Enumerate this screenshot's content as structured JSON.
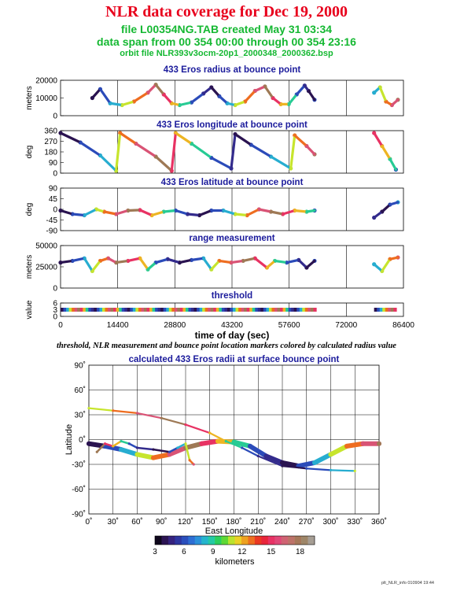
{
  "header": {
    "title": "NLR data coverage for Dec 19, 2000",
    "file_line": "file L00354NG.TAB created May 31 03:34",
    "span_line": "data span from 00 354 00:00 through 00 354 23:16",
    "orbit_line": "orbit file NLR393v3ocm-20p1_2000348_2000362.bsp"
  },
  "caption": "threshold, NLR measurement and bounce point location markers colored by calculated radius value",
  "footer": "plt_NLR_info 010904 19:44",
  "colorbar": {
    "label": "kilometers",
    "ticks": [
      "3",
      "6",
      "9",
      "12",
      "15",
      "18"
    ],
    "min": 3,
    "max": 19.5,
    "stops": [
      "#000000",
      "#3a1a6e",
      "#2a3fb0",
      "#2f7fe0",
      "#22c7c7",
      "#2fd23a",
      "#e9e92a",
      "#f08a1e",
      "#e81e24",
      "#e83a7a",
      "#c87070",
      "#9a7a52",
      "#aaaaaa"
    ]
  },
  "chart_data": [
    {
      "type": "scatter",
      "title": "433 Eros radius at bounce point",
      "ylabel": "meters",
      "ylim": [
        0,
        20000
      ],
      "yticks": [
        "0",
        "10000",
        "20000"
      ],
      "xlim": [
        0,
        86400
      ],
      "series": [
        {
          "x": [
            8000,
            10000,
            12500,
            15500,
            18500,
            22000,
            24000,
            26000,
            28000,
            30000,
            33000,
            36000,
            38000,
            40000,
            42000,
            44000,
            46500,
            49000,
            51500,
            53500,
            55500,
            57500,
            59500,
            61500,
            62500,
            64000,
            79000,
            80500,
            82000,
            83500,
            85000
          ],
          "y": [
            10000,
            15000,
            7000,
            6000,
            8000,
            13000,
            17500,
            12000,
            7000,
            6000,
            7500,
            12500,
            16000,
            11000,
            7000,
            6000,
            8000,
            14000,
            16500,
            10000,
            6500,
            6500,
            12000,
            17000,
            14000,
            9000,
            13000,
            16000,
            8000,
            6000,
            9000
          ]
        }
      ]
    },
    {
      "type": "scatter",
      "title": "433 Eros longitude at bounce point",
      "ylabel": "deg",
      "ylim": [
        0,
        360
      ],
      "yticks": [
        "0",
        "90",
        "180",
        "270",
        "360"
      ],
      "xlim": [
        0,
        86400
      ],
      "series": [
        {
          "x": [
            0,
            5000,
            10000,
            14000,
            15000,
            19000,
            24000,
            28000,
            29000,
            33000,
            38000,
            43000,
            44000,
            48000,
            53000,
            58000,
            59000,
            62000,
            64000,
            79000,
            81000,
            83000,
            84500
          ],
          "y": [
            340,
            260,
            150,
            20,
            340,
            250,
            140,
            20,
            340,
            250,
            130,
            40,
            330,
            240,
            140,
            40,
            320,
            230,
            160,
            340,
            230,
            120,
            30
          ]
        }
      ]
    },
    {
      "type": "scatter",
      "title": "433 Eros latitude at bounce point",
      "ylabel": "deg",
      "ylim": [
        -90,
        90
      ],
      "yticks": [
        "-90",
        "-45",
        "0",
        "45",
        "90"
      ],
      "xlim": [
        0,
        86400
      ],
      "series": [
        {
          "x": [
            0,
            3000,
            6000,
            9000,
            11000,
            14000,
            17000,
            20000,
            23000,
            26000,
            29000,
            32000,
            35000,
            38000,
            41000,
            44000,
            47000,
            50000,
            53000,
            56000,
            59000,
            62000,
            64000,
            79000,
            81000,
            83000,
            85000
          ],
          "y": [
            -5,
            -20,
            -25,
            0,
            -10,
            -20,
            -5,
            -3,
            -25,
            -10,
            -5,
            -20,
            -25,
            -5,
            -5,
            -20,
            -25,
            0,
            -10,
            -20,
            -5,
            -10,
            -5,
            -35,
            -10,
            20,
            30
          ]
        }
      ]
    },
    {
      "type": "scatter",
      "title": "range measurement",
      "ylabel": "meters",
      "ylim": [
        0,
        50000
      ],
      "yticks": [
        "0",
        "25000",
        "50000"
      ],
      "xlim": [
        0,
        86400
      ],
      "series": [
        {
          "x": [
            0,
            3000,
            6000,
            8000,
            10000,
            12000,
            14000,
            17000,
            20000,
            22000,
            24000,
            27000,
            30000,
            33000,
            36000,
            38000,
            40000,
            43000,
            46000,
            49000,
            52000,
            54000,
            57000,
            60000,
            62000,
            64000,
            79000,
            81000,
            83000,
            85000
          ],
          "y": [
            30000,
            32000,
            35000,
            20000,
            32000,
            35000,
            30000,
            32000,
            35000,
            22000,
            30000,
            34000,
            30000,
            33000,
            35000,
            22000,
            32000,
            30000,
            32000,
            35000,
            24000,
            32000,
            30000,
            33000,
            24000,
            32000,
            28000,
            20000,
            34000,
            36000
          ]
        }
      ]
    },
    {
      "type": "scatter",
      "title": "threshold",
      "ylabel": "value",
      "ylim": [
        0,
        6
      ],
      "yticks": [
        "0",
        "3",
        "6"
      ],
      "xlabel": "time of day (sec)",
      "xlim": [
        0,
        86400
      ],
      "xticks": [
        "0",
        "14400",
        "28800",
        "43200",
        "57600",
        "72000",
        "86400"
      ],
      "series": [
        {
          "segments": [
            [
              0,
              64500
            ],
            [
              79000,
              85000
            ]
          ],
          "value": 3
        }
      ]
    },
    {
      "type": "scatter",
      "title": "calculated 433 Eros radii at surface bounce point",
      "xlabel": "East Longitude",
      "ylabel": "Latitude",
      "xlim": [
        0,
        360
      ],
      "ylim": [
        -90,
        90
      ],
      "xticks": [
        "0˚",
        "30˚",
        "60˚",
        "90˚",
        "120˚",
        "150˚",
        "180˚",
        "210˚",
        "240˚",
        "270˚",
        "300˚",
        "330˚",
        "360˚"
      ],
      "yticks": [
        "-90˚",
        "-60˚",
        "-30˚",
        "0˚",
        "30˚",
        "60˚",
        "90˚"
      ],
      "series": [
        {
          "x": [
            0,
            20,
            40,
            60,
            80,
            100,
            120,
            140,
            160,
            180,
            200,
            220,
            240,
            260,
            280,
            300,
            320,
            340,
            360
          ],
          "y": [
            -5,
            -8,
            -12,
            -18,
            -22,
            -18,
            -10,
            -5,
            -2,
            -3,
            -8,
            -20,
            -28,
            -32,
            -28,
            -18,
            -8,
            -5,
            -5
          ]
        },
        {
          "x": [
            0,
            30,
            60,
            90,
            120,
            150,
            170,
            190,
            210,
            240,
            270,
            300,
            330
          ],
          "y": [
            38,
            35,
            32,
            26,
            18,
            8,
            -2,
            -10,
            -20,
            -32,
            -35,
            -37,
            -38
          ]
        },
        {
          "x": [
            10,
            20,
            30,
            40,
            50,
            60,
            80,
            100,
            110,
            120,
            125,
            130
          ],
          "y": [
            -15,
            -5,
            -8,
            -2,
            -5,
            -10,
            -12,
            -15,
            -10,
            -5,
            -25,
            -30
          ]
        }
      ]
    }
  ]
}
